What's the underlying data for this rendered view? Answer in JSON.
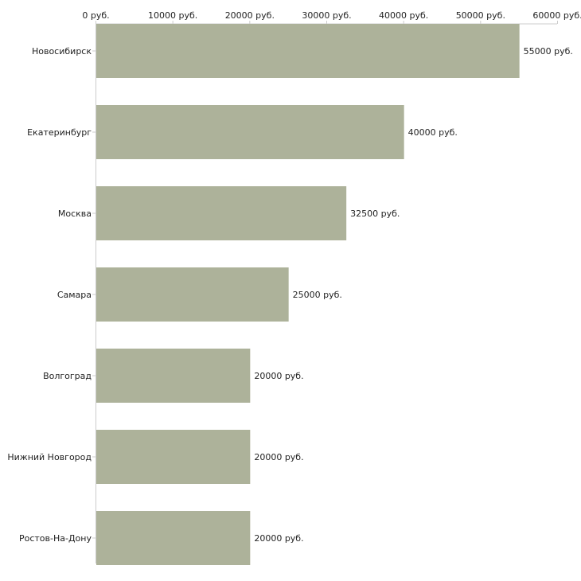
{
  "chart_data": {
    "type": "bar",
    "orientation": "horizontal",
    "title": "",
    "xlabel": "",
    "ylabel": "",
    "unit_suffix": " руб.",
    "xlim": [
      0,
      60000
    ],
    "x_ticks": [
      0,
      10000,
      20000,
      30000,
      40000,
      50000,
      60000
    ],
    "x_tick_labels": [
      "0 руб.",
      "10000 руб.",
      "20000 руб.",
      "30000 руб.",
      "40000 руб.",
      "50000 руб.",
      "60000 руб."
    ],
    "x_axis_position": "top",
    "grid": false,
    "legend": "none",
    "categories": [
      "Новосибирск",
      "Екатеринбург",
      "Москва",
      "Самара",
      "Волгоград",
      "Нижний Новгород",
      "Ростов-На-Дону"
    ],
    "values": [
      55000,
      40000,
      32500,
      25000,
      20000,
      20000,
      20000
    ],
    "value_labels": [
      "55000 руб.",
      "40000 руб.",
      "32500 руб.",
      "25000 руб.",
      "20000 руб.",
      "20000 руб.",
      "20000 руб."
    ],
    "bar_color": "#adb29a",
    "axis_color": "#cccccc"
  }
}
